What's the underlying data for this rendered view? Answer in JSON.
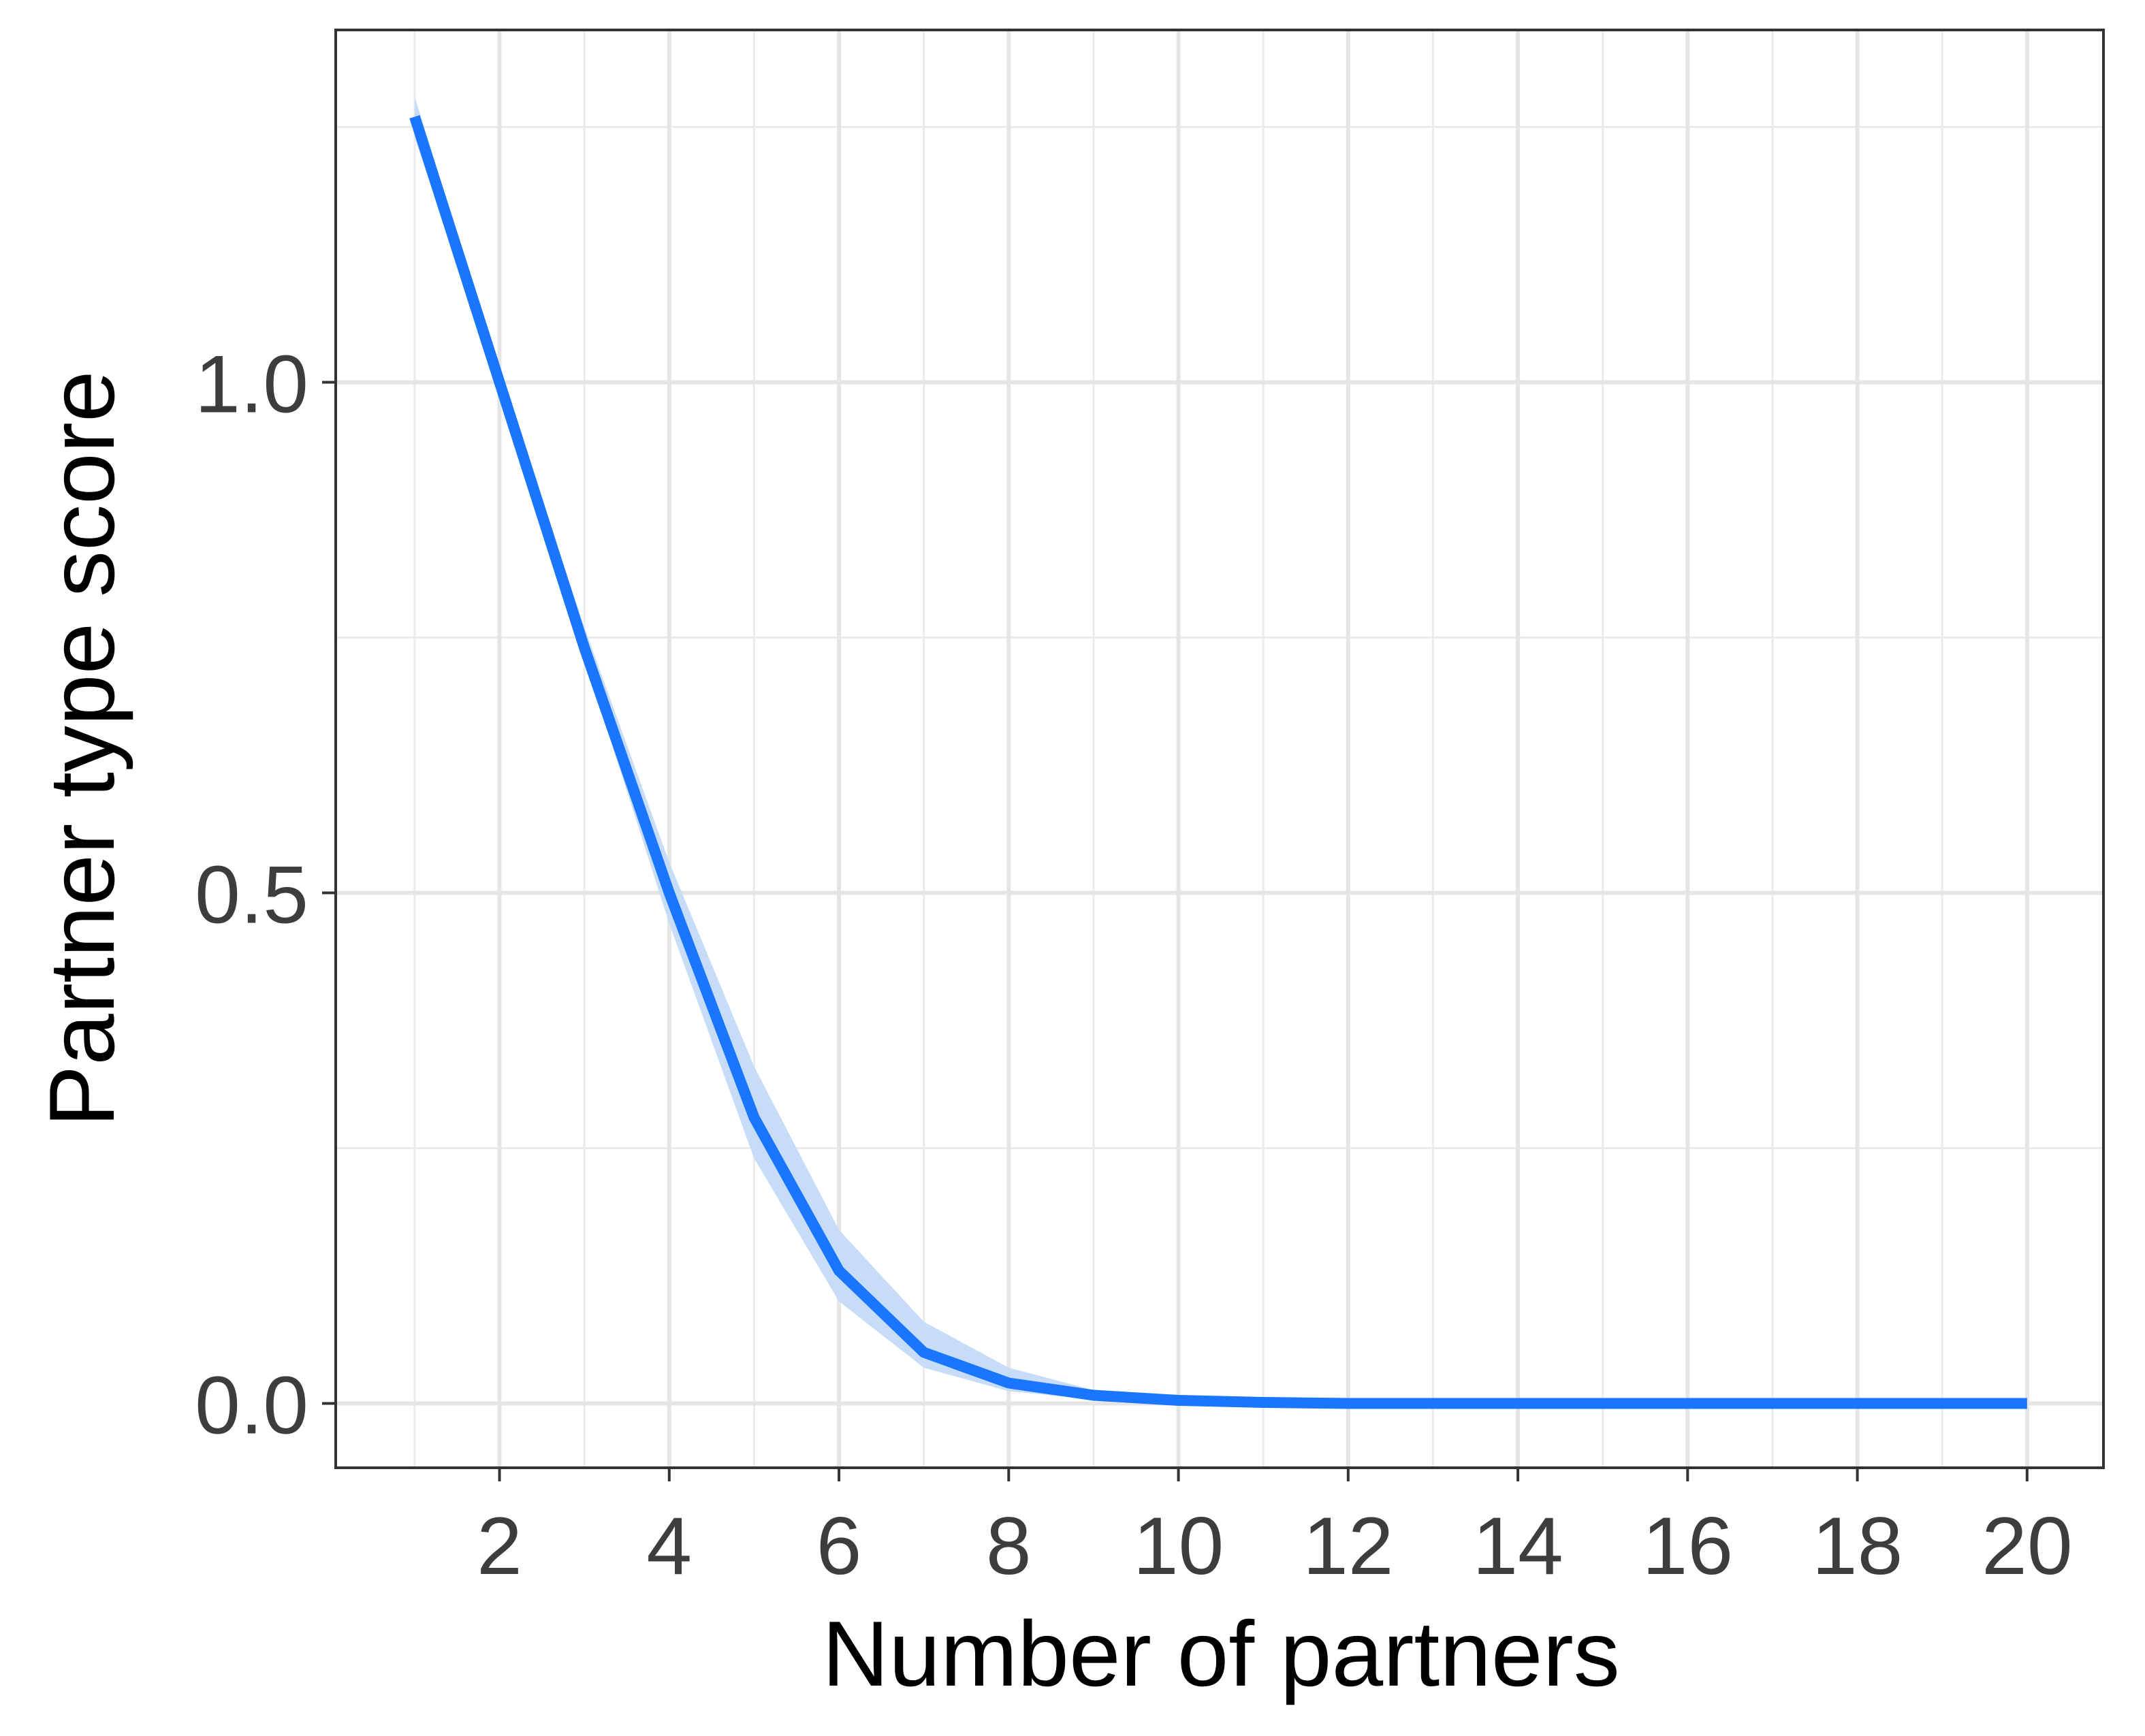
{
  "chart_data": {
    "type": "line",
    "x_label": "Number of partners",
    "y_label": "Partner type score",
    "x": [
      1,
      2,
      3,
      4,
      5,
      6,
      7,
      8,
      9,
      10,
      11,
      12,
      13,
      14,
      15,
      16,
      17,
      18,
      19,
      20
    ],
    "series": [
      {
        "color": "#1a75ff",
        "band_color": "#c6dcf7",
        "values": [
          1.26,
          1.0,
          0.74,
          0.5,
          0.28,
          0.13,
          0.05,
          0.02,
          0.008,
          0.003,
          0.001,
          0,
          0,
          0,
          0,
          0,
          0,
          0,
          0,
          0
        ],
        "lower": [
          1.24,
          0.99,
          0.73,
          0.47,
          0.24,
          0.1,
          0.035,
          0.012,
          0.004,
          0.001,
          0,
          0,
          0,
          0,
          0,
          0,
          0,
          0,
          0,
          0
        ],
        "upper": [
          1.28,
          1.01,
          0.76,
          0.53,
          0.33,
          0.17,
          0.08,
          0.035,
          0.013,
          0.005,
          0.002,
          0.001,
          0,
          0,
          0,
          0,
          0,
          0,
          0,
          0
        ]
      }
    ],
    "xlim": [
      0.07,
      20.9
    ],
    "ylim": [
      -0.063,
      1.345
    ],
    "xticks": [
      2,
      4,
      6,
      8,
      10,
      12,
      14,
      16,
      18,
      20
    ],
    "yticks": [
      {
        "value": 0,
        "label": "0.0"
      },
      {
        "value": 0.5,
        "label": "0.5"
      },
      {
        "value": 1,
        "label": "1.0"
      }
    ],
    "grid": true
  }
}
